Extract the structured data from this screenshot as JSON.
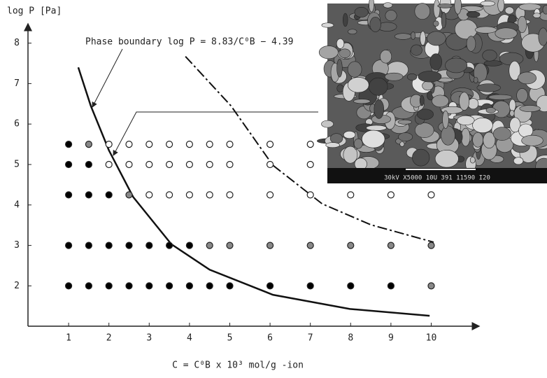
{
  "chart_data": {
    "type": "scatter",
    "y_label": "log P [Pa]",
    "x_label": "C = C⁰B x 10³ mol/g -ion",
    "annotation": "Phase boundary log P = 8.83/C⁰B − 4.39",
    "inset_caption": "30kV X5000 10U 391 11590 I20",
    "xlim": [
      0,
      11.2
    ],
    "ylim": [
      1,
      8.5
    ],
    "xticks": [
      1,
      2,
      3,
      4,
      5,
      6,
      7,
      8,
      9,
      10
    ],
    "yticks": [
      2,
      3,
      4,
      5,
      6,
      7,
      8
    ],
    "series": [
      {
        "marker": "filled",
        "color": "#000000",
        "x": [
          1,
          1,
          1.5,
          1,
          1.5,
          2,
          1,
          1.5,
          2,
          2.5,
          3,
          3.5,
          4,
          1,
          1.5,
          2,
          2.5,
          3,
          3.5,
          4,
          4.5,
          5,
          6,
          7,
          8,
          9
        ],
        "y": [
          5.5,
          5,
          5,
          4.25,
          4.25,
          4.25,
          3,
          3,
          3,
          3,
          3,
          3,
          3,
          2,
          2,
          2,
          2,
          2,
          2,
          2,
          2,
          2,
          2,
          2,
          2,
          2
        ]
      },
      {
        "marker": "hatched",
        "color": "#888888",
        "x": [
          1.5,
          2.5,
          4.5,
          5,
          6,
          7,
          8,
          9,
          10,
          10
        ],
        "y": [
          5.5,
          4.25,
          3,
          3,
          3,
          3,
          3,
          3,
          3,
          2
        ]
      },
      {
        "marker": "open",
        "color": "#ffffff",
        "x": [
          2,
          2.5,
          3,
          3.5,
          4,
          4.5,
          5,
          6,
          7,
          2,
          2.5,
          3,
          3.5,
          4,
          4.5,
          5,
          6,
          7,
          3,
          3.5,
          4,
          4.5,
          5,
          6,
          7,
          8,
          9,
          10
        ],
        "y": [
          5.5,
          5.5,
          5.5,
          5.5,
          5.5,
          5.5,
          5.5,
          5.5,
          5.5,
          5,
          5,
          5,
          5,
          5,
          5,
          5,
          5,
          5,
          4.25,
          4.25,
          4.25,
          4.25,
          4.25,
          4.25,
          4.25,
          4.25,
          4.25,
          4.25
        ]
      }
    ],
    "curves": [
      {
        "style": "solid",
        "x": [
          1.24,
          1.55,
          2.0,
          2.6,
          3.55,
          4.5,
          6.07,
          7.98,
          9.96
        ],
        "y": [
          7.4,
          6.45,
          5.35,
          4.2,
          3.03,
          2.4,
          1.78,
          1.43,
          1.26
        ]
      },
      {
        "style": "dashed",
        "x": [
          3.9,
          5.03,
          6.07,
          7.29,
          8.5,
          10.06
        ],
        "y": [
          7.67,
          6.45,
          4.98,
          4.03,
          3.51,
          3.08
        ]
      }
    ]
  }
}
